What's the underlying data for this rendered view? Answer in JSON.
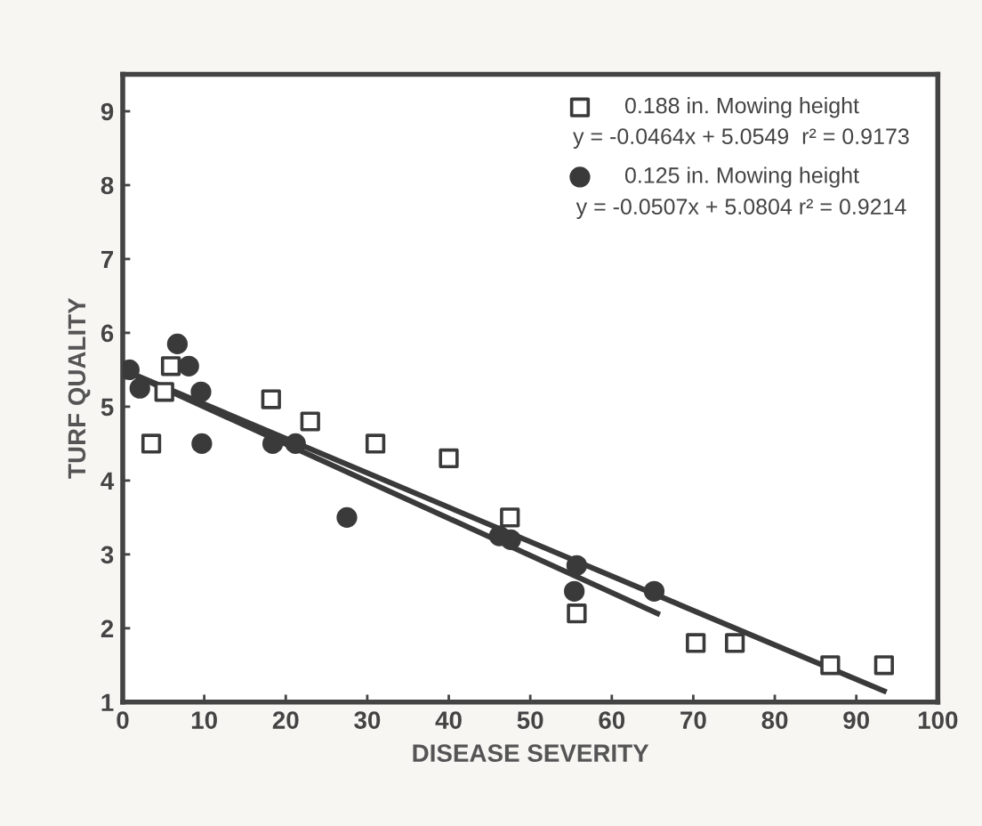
{
  "chart_data": {
    "type": "scatter",
    "xlabel": "DISEASE SEVERITY",
    "ylabel": "TURF QUALITY",
    "xlim": [
      0,
      100
    ],
    "ylim": [
      1,
      9.5
    ],
    "xticks": [
      0,
      10,
      20,
      30,
      40,
      50,
      60,
      70,
      80,
      90,
      100
    ],
    "yticks": [
      1,
      2,
      3,
      4,
      5,
      6,
      7,
      8,
      9
    ],
    "grid": false,
    "legend": "top right",
    "series": [
      {
        "name": "0.188 in. Mowing height",
        "marker": "square",
        "color": "#3a3a3a",
        "x": [
          3.5,
          5.1,
          5.9,
          18.2,
          23,
          31,
          40,
          47.5,
          55.7,
          70.3,
          75.1,
          86.8,
          93.4
        ],
        "values": [
          4.5,
          5.2,
          5.55,
          5.1,
          4.8,
          4.5,
          4.3,
          3.5,
          2.2,
          1.8,
          1.8,
          1.5,
          1.5
        ]
      },
      {
        "name": "0.125 in. Mowing height",
        "marker": "circle",
        "color": "#3a3a3a",
        "x": [
          0.8,
          2.1,
          6.7,
          8.1,
          9.6,
          9.7,
          18.4,
          21.2,
          27.5,
          46.2,
          47.6,
          55.7,
          55.4,
          65.2
        ],
        "values": [
          5.5,
          5.25,
          5.85,
          5.55,
          5.2,
          4.5,
          4.5,
          4.5,
          3.5,
          3.25,
          3.2,
          2.85,
          2.5,
          2.5
        ]
      },
      {
        "type": "line",
        "marker": "none",
        "line_style": "solid",
        "color": "#3a3a3a",
        "x": [
          0,
          93.4
        ],
        "values": [
          5.5,
          1.15
        ]
      },
      {
        "type": "line",
        "marker": "none",
        "line_style": "solid",
        "color": "#3a3a3a",
        "x": [
          0,
          65.6
        ],
        "values": [
          5.5,
          2.2
        ]
      }
    ],
    "annotations": [
      "y = -0.0464x + 5.0549  r² = 0.9173",
      "y = -0.0507x + 5.0804 r² = 0.9214"
    ]
  }
}
